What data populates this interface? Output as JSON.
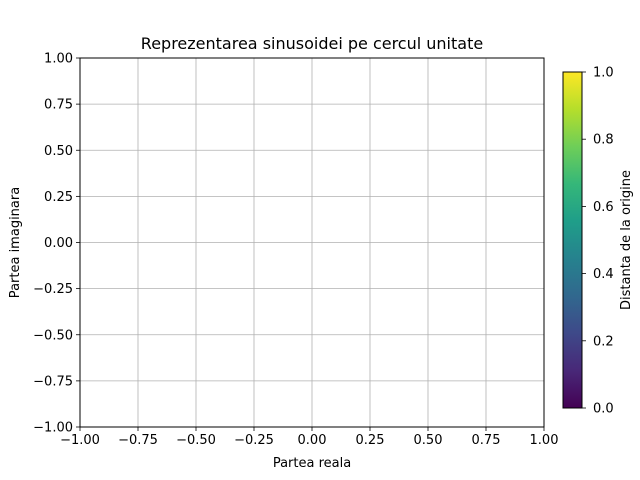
{
  "chart_data": {
    "type": "scatter",
    "title": "Reprezentarea sinusoidei pe cercul unitate",
    "xlabel": "Partea reala",
    "ylabel": "Partea imaginara",
    "xlim": [
      -1.0,
      1.0
    ],
    "ylim": [
      -1.0,
      1.0
    ],
    "x_ticks": [
      "−1.00",
      "−0.75",
      "−0.50",
      "−0.25",
      "0.00",
      "0.25",
      "0.50",
      "0.75",
      "1.00"
    ],
    "y_ticks": [
      "−1.00",
      "−0.75",
      "−0.50",
      "−0.25",
      "0.00",
      "0.25",
      "0.50",
      "0.75",
      "1.00"
    ],
    "grid": true,
    "series": [],
    "colorbar": {
      "label": "Distanta de la origine",
      "range": [
        0.0,
        1.0
      ],
      "colormap": "viridis",
      "ticks": [
        "0.0",
        "0.2",
        "0.4",
        "0.6",
        "0.8",
        "1.0"
      ]
    }
  },
  "colors": {
    "grid": "#b0b0b0",
    "axis": "#000000",
    "viridis": [
      "#440154",
      "#482878",
      "#3e4989",
      "#31688e",
      "#26828e",
      "#1f9e89",
      "#35b779",
      "#6ece58",
      "#b5de2b",
      "#fde725"
    ]
  }
}
